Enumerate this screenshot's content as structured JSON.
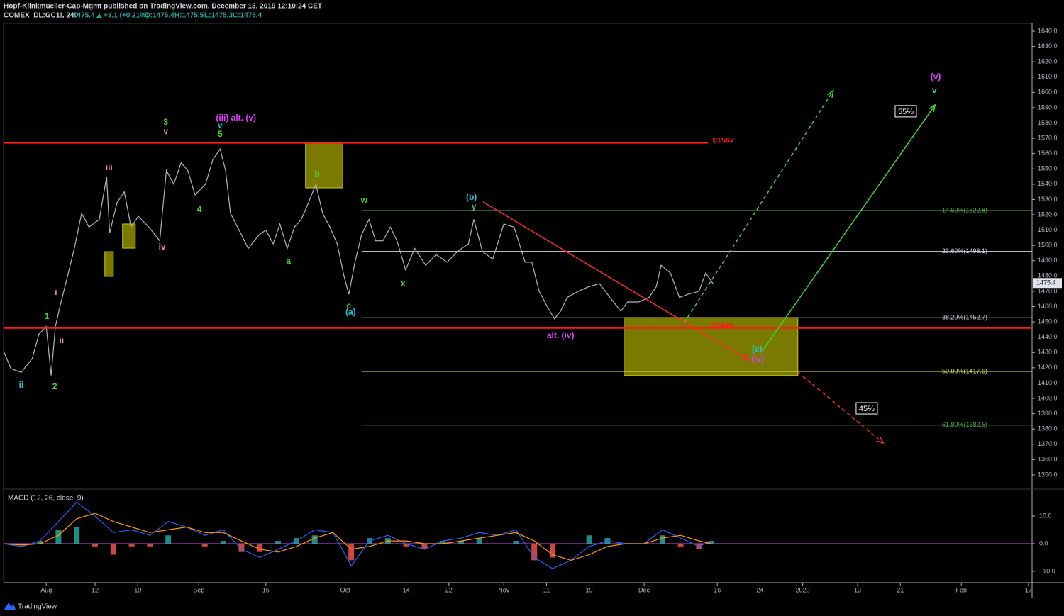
{
  "header": {
    "line1": "Hopf-Klinkmueller-Cap-Mgmt published on TradingView.com, December 13, 2019 12:10:24 CET",
    "symbol": "COMEX_DL:GC1!, 240",
    "price": "1475.4",
    "change": "+3.1 (+0.21%)",
    "open": "O:1475.4",
    "high": "H:1475.5",
    "low": "L:1475.3",
    "close": "C:1475.4"
  },
  "footer": {
    "brand": "TradingView"
  },
  "chart_data": [
    {
      "type": "line",
      "color": "#b2b5be",
      "x": [
        0,
        1.2,
        2.9,
        4.7,
        5.8,
        7.0,
        7.8,
        8.5,
        9.3,
        10.5,
        11.6,
        12.8,
        14.0,
        15.7,
        16.9,
        17.4,
        18.6,
        19.8,
        20.9,
        22.1,
        23.8,
        25.6,
        26.7,
        27.9,
        29.1,
        30.2,
        31.4,
        33.1,
        34.3,
        35.5,
        36.4,
        37.2,
        39.0,
        40.1,
        41.9,
        43.0,
        44.2,
        45.3,
        46.5,
        47.7,
        48.8,
        50.0,
        51.2,
        52.3,
        53.5,
        54.7,
        55.8,
        56.6,
        57.6,
        58.7,
        59.9,
        61.0,
        62.2,
        63.4,
        64.5,
        65.9,
        67.4,
        69.2,
        70.9,
        72.7,
        74.4,
        76.2,
        77.1,
        78.5,
        80.2,
        82.0,
        83.7,
        85.5,
        86.6,
        87.8,
        89.0,
        90.3,
        91.3,
        92.4,
        94.2,
        95.9,
        97.7,
        99.4,
        101.2,
        102.3,
        104.1,
        105.8,
        107.0,
        107.8,
        109.3,
        110.8,
        112.2,
        114.0,
        115.1,
        116.3
      ],
      "values": [
        1431,
        1419.5,
        1417,
        1426,
        1442,
        1447,
        1415,
        1447,
        1461,
        1480,
        1498,
        1521,
        1512,
        1517,
        1545,
        1508,
        1528,
        1535,
        1512,
        1519,
        1512,
        1503,
        1549,
        1540,
        1554,
        1549,
        1533,
        1540,
        1556,
        1563,
        1549,
        1521,
        1507,
        1498,
        1507,
        1510,
        1501,
        1514,
        1498,
        1512,
        1517,
        1528,
        1540,
        1521,
        1512,
        1501,
        1480,
        1468,
        1489,
        1507,
        1517,
        1503,
        1503,
        1512,
        1503,
        1484,
        1498,
        1487,
        1494,
        1489,
        1496,
        1501,
        1517,
        1496,
        1491,
        1514,
        1512,
        1489,
        1489,
        1470,
        1461,
        1452,
        1457,
        1466,
        1470,
        1473,
        1475,
        1466,
        1457,
        1463,
        1463,
        1466,
        1473,
        1487,
        1482,
        1466,
        1468,
        1470,
        1482,
        1475
      ],
      "xlim": [
        0,
        168.6
      ],
      "xticks": [
        {
          "value": 7,
          "label": "Aug"
        },
        {
          "value": 15,
          "label": "12"
        },
        {
          "value": 22,
          "label": "19"
        },
        {
          "value": 32,
          "label": "Sep"
        },
        {
          "value": 43,
          "label": "16"
        },
        {
          "value": 56,
          "label": "Oct"
        },
        {
          "value": 66,
          "label": "14"
        },
        {
          "value": 73,
          "label": "22"
        },
        {
          "value": 82,
          "label": "Nov"
        },
        {
          "value": 89,
          "label": "11"
        },
        {
          "value": 96,
          "label": "19"
        },
        {
          "value": 105,
          "label": "Dec"
        },
        {
          "value": 117,
          "label": "16"
        },
        {
          "value": 124,
          "label": "24"
        },
        {
          "value": 131,
          "label": "2020"
        },
        {
          "value": 140,
          "label": "13"
        },
        {
          "value": 147,
          "label": "21"
        },
        {
          "value": 157,
          "label": "Feb"
        },
        {
          "value": 168,
          "label": "17"
        }
      ],
      "ylim": [
        1340.7,
        1645.1
      ],
      "yticks": [
        {
          "value": 1350,
          "label": "1350.0"
        },
        {
          "value": 1360,
          "label": "1360.0"
        },
        {
          "value": 1370,
          "label": "1370.0"
        },
        {
          "value": 1380,
          "label": "1380.0"
        },
        {
          "value": 1390,
          "label": "1390.0"
        },
        {
          "value": 1400,
          "label": "1400.0"
        },
        {
          "value": 1410,
          "label": "1410.0"
        },
        {
          "value": 1420,
          "label": "1420.0"
        },
        {
          "value": 1430,
          "label": "1430.0"
        },
        {
          "value": 1440,
          "label": "1440.0"
        },
        {
          "value": 1450,
          "label": "1450.0"
        },
        {
          "value": 1460,
          "label": "1460.0"
        },
        {
          "value": 1470,
          "label": "1470.0"
        },
        {
          "value": 1480,
          "label": "1480.0"
        },
        {
          "value": 1490,
          "label": "1490.0"
        },
        {
          "value": 1500,
          "label": "1500.0"
        },
        {
          "value": 1510,
          "label": "1510.0"
        },
        {
          "value": 1520,
          "label": "1520.0"
        },
        {
          "value": 1530,
          "label": "1530.0"
        },
        {
          "value": 1540,
          "label": "1540.0"
        },
        {
          "value": 1550,
          "label": "1550.0"
        },
        {
          "value": 1560,
          "label": "1560.0"
        },
        {
          "value": 1570,
          "label": "1570.0"
        },
        {
          "value": 1580,
          "label": "1580.0"
        },
        {
          "value": 1590,
          "label": "1590.0"
        },
        {
          "value": 1600,
          "label": "1600.0"
        },
        {
          "value": 1610,
          "label": "1610.0"
        },
        {
          "value": 1620,
          "label": "1620.0"
        },
        {
          "value": 1630,
          "label": "1630.0"
        },
        {
          "value": 1640,
          "label": "1640.0"
        }
      ],
      "last_price": 1475.4,
      "levels": [
        {
          "label": "$1567",
          "value": 1567,
          "color": "#ff1a1a",
          "x": [
            0,
            115.5
          ],
          "label_x": 118.0
        },
        {
          "label": "$1446",
          "value": 1446,
          "color": "#ff1a1a",
          "x": [
            0,
            168.6
          ],
          "label_x": 117.8
        }
      ],
      "fib_levels": [
        {
          "label": "14.60%(1522.8)",
          "value": 1522.8,
          "color": "#4caf50"
        },
        {
          "label": "23.60%(1496.1)",
          "value": 1496.1,
          "color": "#d1d4dc"
        },
        {
          "label": "38.20%(1452.7)",
          "value": 1452.7,
          "color": "#d1d4dc"
        },
        {
          "label": "50.00%(1417.6)",
          "value": 1417.6,
          "color": "#e6e65c"
        },
        {
          "label": "61.80%(1382.5)",
          "value": 1382.5,
          "color": "#4caf50"
        }
      ],
      "fib_start": 58.7,
      "zones": [
        {
          "x": [
            16.6,
            18.0
          ],
          "y": [
            1495.9,
            1479.7
          ]
        },
        {
          "x": [
            19.5,
            21.6
          ],
          "y": [
            1514.0,
            1498.2
          ]
        },
        {
          "x": [
            49.5,
            55.6
          ],
          "y": [
            1566.8,
            1537.6
          ]
        },
        {
          "x": [
            101.7,
            130.2
          ],
          "y": [
            1452.8,
            1414.9
          ]
        }
      ],
      "trendlines": [
        {
          "x": [
            78.6,
            122.1
          ],
          "y": [
            1528.4,
            1425.0
          ],
          "color": "#ff2a2a",
          "dashed": false
        },
        {
          "x": [
            111.6,
            136.0
          ],
          "y": [
            1449.6,
            1601.1
          ],
          "color": "#3cd83c",
          "dashed": true
        },
        {
          "x": [
            124.4,
            152.7
          ],
          "y": [
            1431.1,
            1591.8
          ],
          "color": "#3cd83c",
          "dashed": false
        },
        {
          "x": [
            130.2,
            144.2
          ],
          "y": [
            1417.2,
            1370.8
          ],
          "color": "#ff2a2a",
          "dashed": true
        }
      ],
      "wave_labels": [
        {
          "text": "3",
          "x": 26.6,
          "y": 1580.2,
          "color": "#3cd83c"
        },
        {
          "text": "v",
          "x": 26.6,
          "y": 1574.2,
          "color": "#f48fb1"
        },
        {
          "text": "(iii) alt. (v)",
          "x": 38.1,
          "y": 1583.0,
          "color": "#e040fb"
        },
        {
          "text": "v",
          "x": 35.5,
          "y": 1577.9,
          "color": "#26c6da"
        },
        {
          "text": "5",
          "x": 35.5,
          "y": 1572.4,
          "color": "#3cd83c"
        },
        {
          "text": "iii",
          "x": 17.3,
          "y": 1550.6,
          "color": "#f48fb1"
        },
        {
          "text": "iv",
          "x": 26.0,
          "y": 1498.7,
          "color": "#f48fb1"
        },
        {
          "text": "4",
          "x": 32.1,
          "y": 1523.3,
          "color": "#3cd83c"
        },
        {
          "text": "i",
          "x": 8.6,
          "y": 1469.1,
          "color": "#f48fb1"
        },
        {
          "text": "1",
          "x": 7.1,
          "y": 1453.3,
          "color": "#3cd83c"
        },
        {
          "text": "ii",
          "x": 9.5,
          "y": 1437.6,
          "color": "#f48fb1"
        },
        {
          "text": "2",
          "x": 8.4,
          "y": 1407.4,
          "color": "#3cd83c"
        },
        {
          "text": "ii",
          "x": 2.9,
          "y": 1408.4,
          "color": "#26c6da"
        },
        {
          "text": "b",
          "x": 51.4,
          "y": 1546.4,
          "color": "#3cd83c"
        },
        {
          "text": "a",
          "x": 46.7,
          "y": 1489.4,
          "color": "#3cd83c"
        },
        {
          "text": "c",
          "x": 56.6,
          "y": 1460.3,
          "color": "#3cd83c"
        },
        {
          "text": "(a)",
          "x": 56.9,
          "y": 1456.1,
          "color": "#26c6da"
        },
        {
          "text": "w",
          "x": 59.1,
          "y": 1529.3,
          "color": "#3cd83c"
        },
        {
          "text": "x",
          "x": 65.5,
          "y": 1474.9,
          "color": "#3cd83c"
        },
        {
          "text": "(b)",
          "x": 76.7,
          "y": 1531.1,
          "color": "#26c6da"
        },
        {
          "text": "y",
          "x": 77.1,
          "y": 1525.1,
          "color": "#3cd83c"
        },
        {
          "text": "alt. (iv)",
          "x": 91.3,
          "y": 1440.8,
          "color": "#e040fb"
        },
        {
          "text": "(c)",
          "x": 123.5,
          "y": 1432.0,
          "color": "#26c6da"
        },
        {
          "text": "(iv)",
          "x": 123.6,
          "y": 1425.5,
          "color": "#e040fb"
        },
        {
          "text": "(v)",
          "x": 152.8,
          "y": 1609.9,
          "color": "#e040fb"
        },
        {
          "text": "v",
          "x": 152.6,
          "y": 1601.1,
          "color": "#26c6da"
        }
      ],
      "callouts": [
        {
          "text": "55%",
          "x": 147.9,
          "y": 1587.7
        },
        {
          "text": "45%",
          "x": 141.5,
          "y": 1393.5
        }
      ]
    },
    {
      "type": "macd",
      "title": "MACD (12, 26, close, 9)",
      "x": [
        0,
        3,
        6,
        9,
        12,
        15,
        18,
        21,
        24,
        27,
        30,
        33,
        36,
        39,
        42,
        45,
        48,
        51,
        54,
        57,
        60,
        63,
        66,
        69,
        72,
        75,
        78,
        81,
        84,
        87,
        90,
        93,
        96,
        99,
        102,
        105,
        108,
        111,
        114,
        116
      ],
      "series": [
        {
          "name": "MACD",
          "color": "#2962ff",
          "values": [
            0,
            -1,
            1,
            8,
            15,
            10,
            4,
            5,
            3,
            8,
            6,
            3,
            5,
            -2,
            -5,
            -2,
            1,
            5,
            4,
            -8,
            1,
            3,
            0,
            -2,
            1,
            2,
            4,
            3,
            5,
            -5,
            -9,
            -6,
            -1,
            1,
            0,
            0,
            5,
            2,
            -1,
            1
          ]
        },
        {
          "name": "Signal",
          "color": "#ff9800",
          "values": [
            0,
            -0.5,
            0,
            3,
            9,
            11,
            8,
            6,
            4,
            5,
            6,
            4,
            4,
            1,
            -2,
            -3,
            -1,
            2,
            4,
            -2,
            -1,
            1,
            1,
            0,
            0,
            1,
            2,
            3,
            4,
            1,
            -4,
            -6,
            -4,
            -1,
            0,
            0,
            2,
            3,
            1,
            0
          ]
        },
        {
          "name": "Histogram",
          "color": "#26a69a",
          "negative_color": "#ef5350",
          "values": [
            0,
            -0.5,
            1,
            5,
            6,
            -1,
            -4,
            -1,
            -1,
            3,
            0,
            -1,
            1,
            -3,
            -3,
            1,
            2,
            3,
            0,
            -6,
            2,
            2,
            -1,
            -2,
            1,
            1,
            2,
            0,
            1,
            -6,
            -5,
            0,
            3,
            2,
            0,
            0,
            3,
            -1,
            -2,
            1
          ]
        }
      ],
      "ylim": [
        -14.1,
        19.2
      ],
      "yticks": [
        {
          "value": 10,
          "label": "10.0"
        },
        {
          "value": 0,
          "label": "0.0"
        },
        {
          "value": -10,
          "label": "−10.0"
        }
      ],
      "zero_line_color": "#e040fb"
    }
  ]
}
